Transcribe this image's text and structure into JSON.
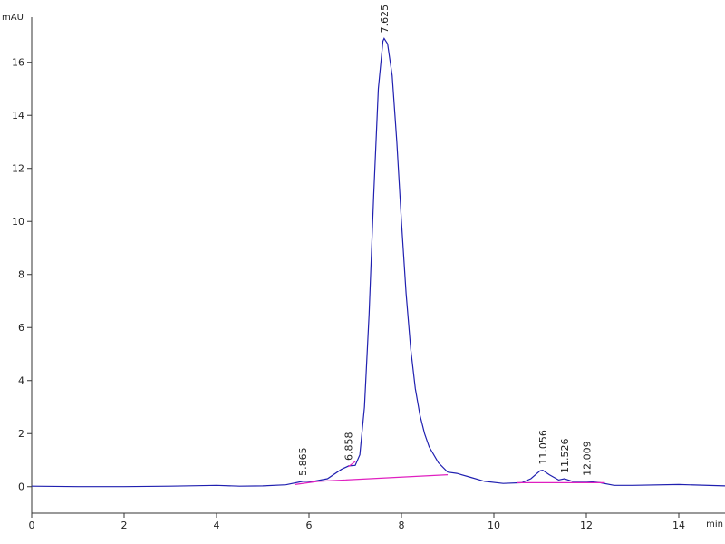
{
  "chart_data": {
    "type": "line",
    "y_label": "mAU",
    "x_label": "min",
    "xlim": [
      0,
      15
    ],
    "ylim": [
      -1,
      17.7
    ],
    "xticks": [
      0,
      2,
      4,
      6,
      8,
      10,
      12,
      14
    ],
    "yticks": [
      0,
      2,
      4,
      6,
      8,
      10,
      12,
      14,
      16
    ],
    "series": [
      {
        "color": "#2020b0",
        "x": [
          0,
          1,
          2,
          3,
          4,
          4.5,
          5,
          5.5,
          5.865,
          6.1,
          6.4,
          6.7,
          6.858,
          7.0,
          7.1,
          7.2,
          7.3,
          7.4,
          7.5,
          7.6,
          7.625,
          7.7,
          7.8,
          7.9,
          8.0,
          8.1,
          8.2,
          8.3,
          8.4,
          8.5,
          8.6,
          8.8,
          9.0,
          9.2,
          9.5,
          9.8,
          10.2,
          10.6,
          10.8,
          11.0,
          11.056,
          11.2,
          11.4,
          11.526,
          11.7,
          12.0,
          12.009,
          12.3,
          12.6,
          13,
          14,
          15
        ],
        "values": [
          0.02,
          0.0,
          0.0,
          0.02,
          0.05,
          0.02,
          0.03,
          0.07,
          0.2,
          0.2,
          0.3,
          0.65,
          0.78,
          0.8,
          1.2,
          3.0,
          6.5,
          11,
          15,
          16.8,
          16.9,
          16.7,
          15.5,
          13,
          10,
          7.3,
          5.2,
          3.7,
          2.7,
          2.0,
          1.5,
          0.9,
          0.55,
          0.5,
          0.35,
          0.2,
          0.12,
          0.15,
          0.3,
          0.6,
          0.62,
          0.45,
          0.25,
          0.3,
          0.2,
          0.2,
          0.2,
          0.15,
          0.05,
          0.05,
          0.08,
          0.03
        ]
      },
      {
        "color": "#e020c0",
        "x": [
          5.7,
          6.2,
          9.0,
          9.05,
          6.85,
          7.0,
          7.05,
          10.5,
          12.4
        ],
        "values": [
          0.08,
          0.2,
          0.45,
          null,
          0.75,
          0.95,
          null,
          0.15,
          0.15
        ]
      }
    ],
    "peaks": [
      {
        "label": "5.865",
        "x": 5.865,
        "y": 0.2
      },
      {
        "label": "6.858",
        "x": 6.858,
        "y": 0.78
      },
      {
        "label": "7.625",
        "x": 7.625,
        "y": 16.9
      },
      {
        "label": "11.056",
        "x": 11.056,
        "y": 0.62
      },
      {
        "label": "11.526",
        "x": 11.526,
        "y": 0.3
      },
      {
        "label": "12.009",
        "x": 12.009,
        "y": 0.2
      }
    ]
  }
}
